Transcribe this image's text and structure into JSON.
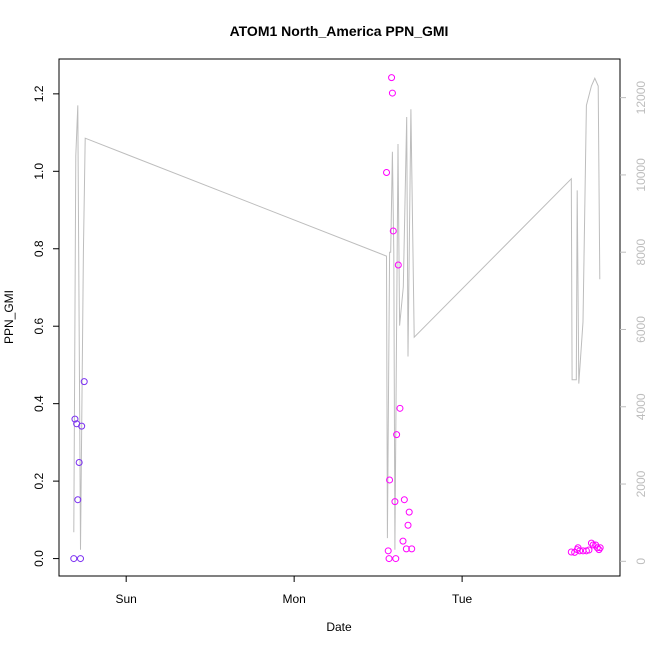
{
  "chart_data": {
    "type": "scatter",
    "title": "ATOM1 North_America PPN_GMI",
    "xlabel": "Date",
    "ylabel": "PPN_GMI",
    "x_ticks": [
      "Sun",
      "Mon",
      "Tue"
    ],
    "x_tick_positions": [
      1.0,
      2.0,
      3.0
    ],
    "xlim": [
      0.6,
      3.94
    ],
    "ylim": [
      -0.045,
      1.29
    ],
    "y_ticks": [
      0.0,
      0.2,
      0.4,
      0.6,
      0.8,
      1.0,
      1.2
    ],
    "y_tick_labels": [
      "0.0",
      "0.2",
      "0.4",
      "0.6",
      "0.8",
      "1.0",
      "1.2"
    ],
    "y2_ylim": [
      -380,
      13000
    ],
    "y2_ticks": [
      0,
      2000,
      4000,
      6000,
      8000,
      10000,
      12000
    ],
    "y2_tick_labels": [
      "0",
      "2000",
      "4000",
      "6000",
      "8000",
      "10000",
      "12000"
    ],
    "grid": false,
    "series": [
      {
        "style": "points",
        "color": "#7b2ff2",
        "points": [
          [
            0.688,
            0.0
          ],
          [
            0.695,
            0.36
          ],
          [
            0.705,
            0.348
          ],
          [
            0.712,
            0.152
          ],
          [
            0.72,
            0.248
          ],
          [
            0.728,
            0.0
          ],
          [
            0.735,
            0.342
          ],
          [
            0.75,
            0.457
          ]
        ]
      },
      {
        "style": "points",
        "color": "#ff00ff",
        "points": [
          [
            2.55,
            0.997
          ],
          [
            2.56,
            0.02
          ],
          [
            2.565,
            0.0
          ],
          [
            2.568,
            0.203
          ],
          [
            2.58,
            1.242
          ],
          [
            2.585,
            1.202
          ],
          [
            2.59,
            0.846
          ],
          [
            2.6,
            0.147
          ],
          [
            2.605,
            0.0
          ],
          [
            2.61,
            0.32
          ],
          [
            2.62,
            0.758
          ],
          [
            2.63,
            0.388
          ],
          [
            2.648,
            0.045
          ],
          [
            2.656,
            0.152
          ],
          [
            2.668,
            0.025
          ],
          [
            2.678,
            0.086
          ],
          [
            2.685,
            0.12
          ],
          [
            2.7,
            0.025
          ]
        ]
      },
      {
        "style": "points",
        "color": "#ff00ff",
        "points": [
          [
            3.65,
            0.017
          ],
          [
            3.67,
            0.016
          ],
          [
            3.685,
            0.023
          ],
          [
            3.69,
            0.028
          ],
          [
            3.7,
            0.02
          ],
          [
            3.72,
            0.02
          ],
          [
            3.74,
            0.02
          ],
          [
            3.755,
            0.022
          ],
          [
            3.77,
            0.04
          ],
          [
            3.78,
            0.035
          ],
          [
            3.795,
            0.035
          ],
          [
            3.805,
            0.028
          ],
          [
            3.815,
            0.023
          ],
          [
            3.822,
            0.028
          ]
        ]
      },
      {
        "style": "line",
        "axis": "right",
        "color": "#bdbdbd",
        "points": [
          [
            0.688,
            750
          ],
          [
            0.7,
            10500
          ],
          [
            0.712,
            11800
          ],
          [
            0.728,
            300
          ],
          [
            0.745,
            8000
          ],
          [
            0.756,
            10950
          ],
          [
            2.55,
            7900
          ],
          [
            2.555,
            600
          ],
          [
            2.568,
            8000
          ],
          [
            2.575,
            8000
          ],
          [
            2.585,
            10600
          ],
          [
            2.593,
            8000
          ],
          [
            2.6,
            300
          ],
          [
            2.618,
            10800
          ],
          [
            2.628,
            6100
          ],
          [
            2.65,
            7100
          ],
          [
            2.67,
            11500
          ],
          [
            2.678,
            5300
          ],
          [
            2.695,
            11700
          ],
          [
            2.715,
            5800
          ],
          [
            3.65,
            9900
          ],
          [
            3.655,
            4700
          ],
          [
            3.68,
            4700
          ],
          [
            3.685,
            9600
          ],
          [
            3.695,
            4600
          ],
          [
            3.72,
            6200
          ],
          [
            3.74,
            11800
          ],
          [
            3.77,
            12300
          ],
          [
            3.79,
            12500
          ],
          [
            3.81,
            12300
          ],
          [
            3.82,
            7300
          ]
        ]
      }
    ]
  }
}
